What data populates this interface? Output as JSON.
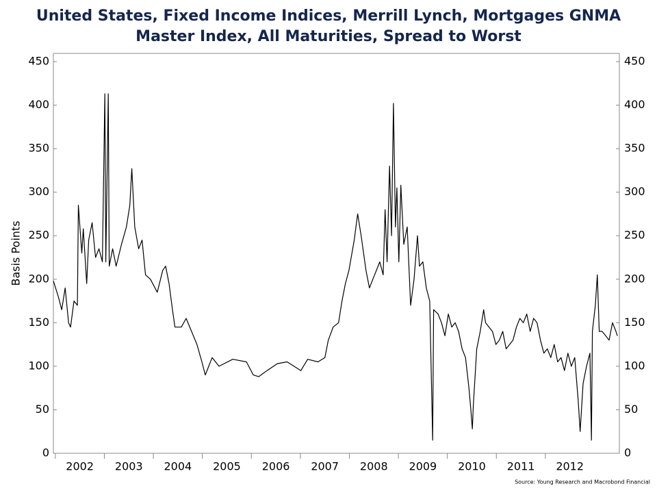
{
  "chart_data": {
    "type": "line",
    "title": [
      "United States, Fixed Income Indices, Merrill Lynch, Mortgages GNMA",
      "Master Index, All Maturities, Spread to Worst"
    ],
    "y_label": "Basis Points",
    "source": "Source: Young Research and Macrobond Financial",
    "xlim": [
      2001.96,
      2013.51
    ],
    "xticks": [
      2002,
      2003,
      2004,
      2005,
      2006,
      2007,
      2008,
      2009,
      2010,
      2011,
      2012
    ],
    "ylim": [
      0,
      450
    ],
    "yticks": [
      0,
      50,
      100,
      150,
      200,
      250,
      300,
      350,
      400,
      450
    ],
    "y2lim": [
      0,
      450
    ],
    "y2ticks": [
      0,
      50,
      100,
      150,
      200,
      250,
      300,
      350,
      400,
      450
    ],
    "series": [
      {
        "name": "Spread to Worst",
        "color": "#000000",
        "x": [
          2001.96,
          2002.06,
          2002.13,
          2002.2,
          2002.27,
          2002.31,
          2002.38,
          2002.45,
          2002.47,
          2002.54,
          2002.57,
          2002.64,
          2002.68,
          2002.75,
          2002.82,
          2002.89,
          2002.96,
          2003.01,
          2003.03,
          2003.08,
          2003.1,
          2003.17,
          2003.24,
          2003.35,
          2003.45,
          2003.52,
          2003.56,
          2003.62,
          2003.7,
          2003.77,
          2003.84,
          2003.94,
          2004.08,
          2004.19,
          2004.25,
          2004.32,
          2004.39,
          2004.44,
          2004.57,
          2004.67,
          2004.78,
          2004.89,
          2004.99,
          2005.06,
          2005.13,
          2005.2,
          2005.34,
          2005.62,
          2005.9,
          2006.04,
          2006.15,
          2006.32,
          2006.53,
          2006.73,
          2006.87,
          2007.01,
          2007.15,
          2007.36,
          2007.5,
          2007.57,
          2007.67,
          2007.78,
          2007.85,
          2007.92,
          2007.99,
          2008.1,
          2008.17,
          2008.24,
          2008.34,
          2008.41,
          2008.48,
          2008.55,
          2008.62,
          2008.69,
          2008.73,
          2008.77,
          2008.82,
          2008.86,
          2008.9,
          2008.94,
          2008.97,
          2009.01,
          2009.05,
          2009.11,
          2009.18,
          2009.25,
          2009.32,
          2009.39,
          2009.43,
          2009.5,
          2009.57,
          2009.64,
          2009.7,
          2009.72,
          2009.81,
          2009.88,
          2009.95,
          2010.02,
          2010.09,
          2010.16,
          2010.23,
          2010.3,
          2010.37,
          2010.44,
          2010.48,
          2010.51,
          2010.53,
          2010.6,
          2010.67,
          2010.74,
          2010.78,
          2010.85,
          2010.92,
          2010.99,
          2011.06,
          2011.13,
          2011.2,
          2011.27,
          2011.34,
          2011.41,
          2011.48,
          2011.55,
          2011.62,
          2011.69,
          2011.76,
          2011.83,
          2011.9,
          2011.97,
          2012.04,
          2012.11,
          2012.18,
          2012.25,
          2012.32,
          2012.39,
          2012.46,
          2012.53,
          2012.6,
          2012.67,
          2012.71,
          2012.77,
          2012.84,
          2012.91,
          2012.94,
          2012.96,
          2013.02,
          2013.06,
          2013.1,
          2013.16,
          2013.23,
          2013.3,
          2013.37,
          2013.44,
          2013.47
        ],
        "values": [
          198,
          180,
          165,
          190,
          150,
          145,
          175,
          170,
          285,
          230,
          258,
          195,
          245,
          265,
          225,
          235,
          220,
          413,
          220,
          413,
          215,
          235,
          215,
          240,
          260,
          285,
          327,
          260,
          235,
          245,
          205,
          200,
          185,
          210,
          215,
          195,
          165,
          145,
          145,
          155,
          140,
          125,
          105,
          90,
          100,
          110,
          100,
          108,
          105,
          90,
          88,
          95,
          103,
          105,
          100,
          95,
          108,
          105,
          110,
          130,
          145,
          150,
          175,
          195,
          210,
          245,
          275,
          250,
          210,
          190,
          200,
          210,
          220,
          205,
          280,
          220,
          330,
          250,
          402,
          260,
          305,
          220,
          308,
          240,
          260,
          170,
          200,
          250,
          215,
          220,
          190,
          175,
          15,
          165,
          160,
          150,
          135,
          160,
          145,
          150,
          140,
          120,
          110,
          75,
          50,
          28,
          55,
          120,
          140,
          165,
          150,
          145,
          140,
          125,
          130,
          140,
          120,
          125,
          130,
          145,
          155,
          150,
          160,
          140,
          155,
          150,
          130,
          115,
          120,
          110,
          125,
          105,
          110,
          95,
          115,
          100,
          110,
          60,
          25,
          80,
          100,
          115,
          15,
          140,
          170,
          205,
          140,
          140,
          135,
          130,
          150,
          140,
          135
        ]
      }
    ]
  }
}
